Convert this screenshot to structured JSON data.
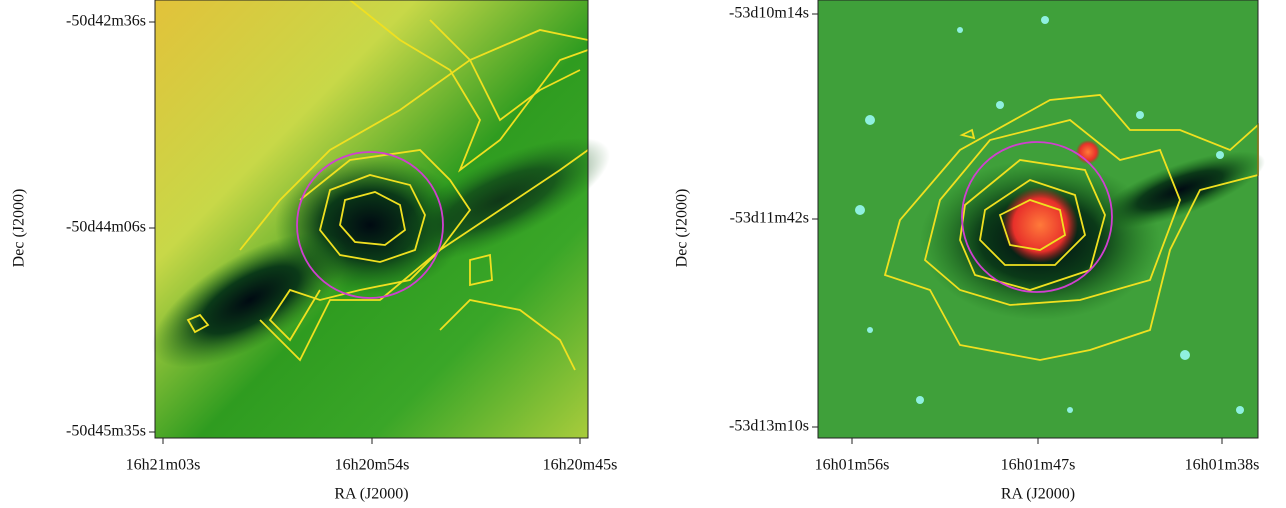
{
  "panels": [
    {
      "x_label": "RA (J2000)",
      "y_label": "Dec (J2000)",
      "xticks": [
        "16h21m03s",
        "16h20m54s",
        "16h20m45s"
      ],
      "yticks": [
        "-50d42m36s",
        "-50d44m06s",
        "-50d45m35s"
      ]
    },
    {
      "x_label": "RA (J2000)",
      "y_label": "Dec (J2000)",
      "xticks": [
        "16h01m56s",
        "16h01m47s",
        "16h01m38s"
      ],
      "yticks": [
        "-53d10m14s",
        "-53d11m42s",
        "-53d13m10s"
      ]
    }
  ]
}
